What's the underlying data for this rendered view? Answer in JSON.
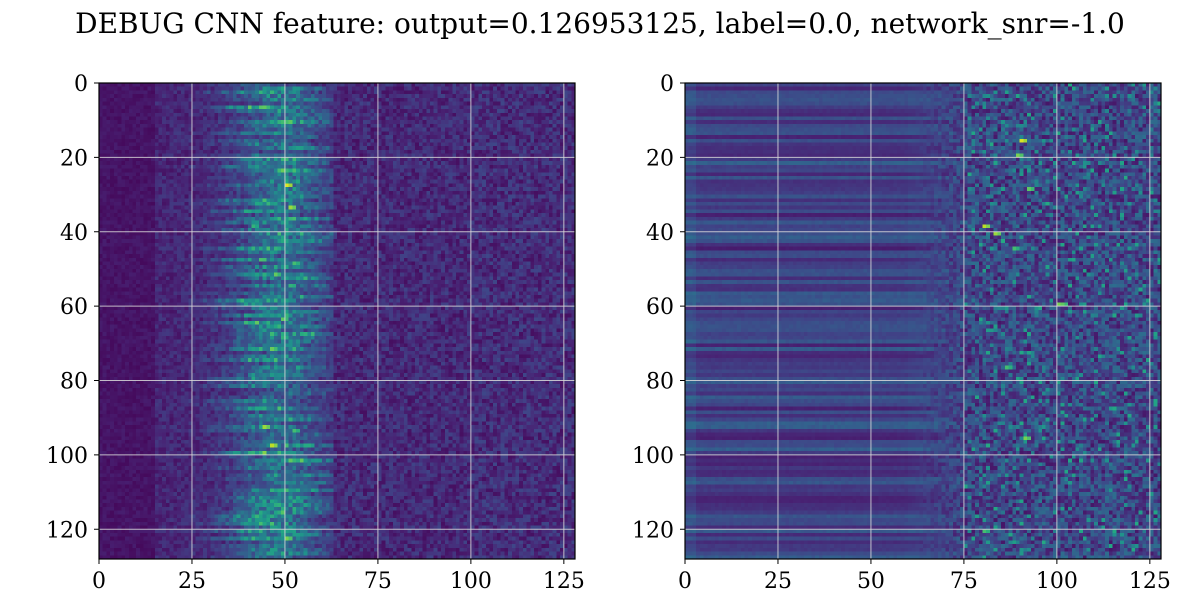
{
  "chart_data": {
    "title": "DEBUG CNN feature: output=0.126953125, label=0.0, network_snr=-1.0",
    "panels": [
      {
        "type": "heatmap",
        "colormap": "viridis",
        "shape": [
          128,
          128
        ],
        "xlim": [
          0,
          128
        ],
        "ylim": [
          128,
          0
        ],
        "x_ticks": [
          0,
          25,
          50,
          75,
          100,
          125
        ],
        "x_tick_labels": [
          "0",
          "25",
          "50",
          "75",
          "100",
          "125"
        ],
        "y_ticks": [
          0,
          20,
          40,
          60,
          80,
          100,
          120
        ],
        "y_tick_labels": [
          "0",
          "20",
          "40",
          "60",
          "80",
          "100",
          "120"
        ],
        "grid": true,
        "description_of_values": "dark (near 0) background, bright activations concentrated in a vertical band around columns 38-62, peaks near (50,27),(50,33),(44,92),(46,97),(50,122)"
      },
      {
        "type": "heatmap",
        "colormap": "viridis",
        "shape": [
          128,
          128
        ],
        "xlim": [
          0,
          128
        ],
        "ylim": [
          128,
          0
        ],
        "x_ticks": [
          0,
          25,
          50,
          75,
          100,
          125
        ],
        "x_tick_labels": [
          "0",
          "25",
          "50",
          "75",
          "100",
          "125"
        ],
        "y_ticks": [
          0,
          20,
          40,
          60,
          80,
          100,
          120
        ],
        "y_tick_labels": [
          "0",
          "20",
          "40",
          "60",
          "80",
          "100",
          "120"
        ],
        "grid": true,
        "description_of_values": "horizontal row-wise banding for columns 0-60, bright scattered activations for columns 75-128, peaks near (90,15),(80,38),(83,40),(100,59),(91,95),(80,120)"
      }
    ]
  }
}
